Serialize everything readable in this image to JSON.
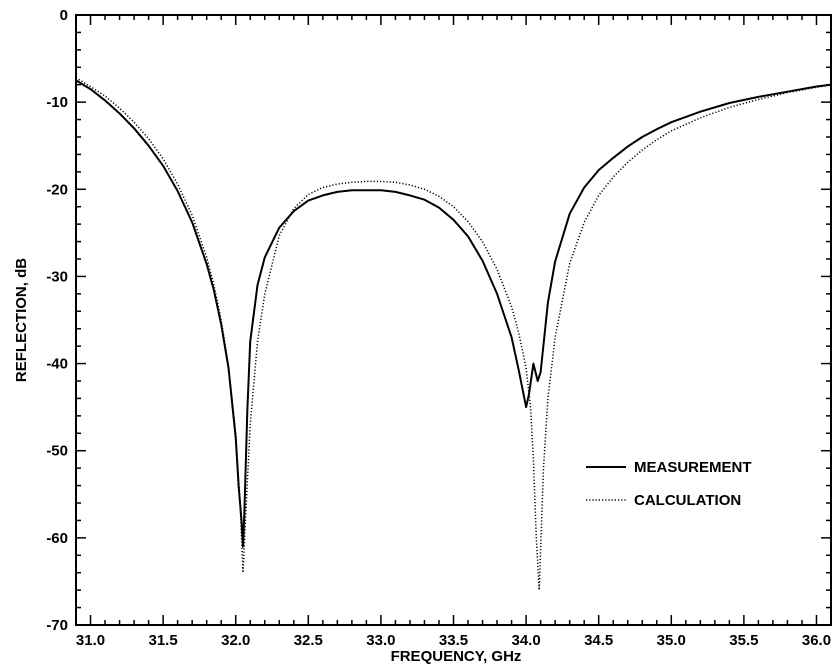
{
  "chart_data": {
    "type": "line",
    "title": "",
    "xlabel": "FREQUENCY, GHz",
    "ylabel": "REFLECTION, dB",
    "xlim": [
      30.9,
      36.1
    ],
    "ylim": [
      -70,
      0
    ],
    "xticks": [
      31.0,
      31.5,
      32.0,
      32.5,
      33.0,
      33.5,
      34.0,
      34.5,
      35.0,
      35.5,
      36.0
    ],
    "xtick_labels": [
      "31.0",
      "31.5",
      "32.0",
      "32.5",
      "33.0",
      "33.5",
      "34.0",
      "34.5",
      "35.0",
      "35.5",
      "36.0"
    ],
    "yticks": [
      0,
      -10,
      -20,
      -30,
      -40,
      -50,
      -60,
      -70
    ],
    "ytick_labels": [
      "0",
      "-10",
      "-20",
      "-30",
      "-40",
      "-50",
      "-60",
      "-70"
    ],
    "grid": false,
    "legend_position": "lower-right",
    "series": [
      {
        "name": "MEASUREMENT",
        "style": "solid",
        "color": "#000000",
        "x": [
          30.9,
          31.0,
          31.1,
          31.2,
          31.3,
          31.4,
          31.5,
          31.6,
          31.7,
          31.8,
          31.85,
          31.9,
          31.95,
          32.0,
          32.02,
          32.04,
          32.05,
          32.06,
          32.08,
          32.1,
          32.15,
          32.2,
          32.3,
          32.4,
          32.5,
          32.6,
          32.7,
          32.8,
          32.9,
          33.0,
          33.1,
          33.2,
          33.3,
          33.4,
          33.5,
          33.6,
          33.7,
          33.8,
          33.9,
          33.95,
          34.0,
          34.02,
          34.05,
          34.08,
          34.1,
          34.15,
          34.2,
          34.3,
          34.4,
          34.5,
          34.6,
          34.7,
          34.8,
          34.9,
          35.0,
          35.2,
          35.4,
          35.6,
          35.8,
          36.0,
          36.1
        ],
        "y": [
          -7.5,
          -8.5,
          -9.8,
          -11.3,
          -13,
          -15,
          -17.3,
          -20.2,
          -23.8,
          -28.6,
          -31.6,
          -35.5,
          -40.5,
          -48.5,
          -54,
          -58,
          -61,
          -57,
          -45.5,
          -37.5,
          -31,
          -27.8,
          -24.4,
          -22.5,
          -21.3,
          -20.7,
          -20.3,
          -20.1,
          -20.1,
          -20.1,
          -20.3,
          -20.7,
          -21.2,
          -22.1,
          -23.5,
          -25.4,
          -28.2,
          -32,
          -37,
          -40.8,
          -45,
          -43.5,
          -40,
          -42,
          -41,
          -33,
          -28.3,
          -22.8,
          -19.8,
          -17.8,
          -16.4,
          -15.1,
          -14,
          -13.1,
          -12.3,
          -11.1,
          -10.1,
          -9.4,
          -8.8,
          -8.2,
          -8.0
        ]
      },
      {
        "name": "CALCULATION",
        "style": "dotted",
        "color": "#000000",
        "x": [
          30.9,
          31.0,
          31.1,
          31.2,
          31.3,
          31.4,
          31.5,
          31.6,
          31.7,
          31.8,
          31.85,
          31.9,
          31.95,
          32.0,
          32.03,
          32.05,
          32.07,
          32.1,
          32.15,
          32.2,
          32.3,
          32.4,
          32.5,
          32.6,
          32.7,
          32.8,
          32.9,
          33.0,
          33.1,
          33.2,
          33.3,
          33.4,
          33.5,
          33.6,
          33.7,
          33.8,
          33.9,
          33.95,
          34.0,
          34.03,
          34.05,
          34.07,
          34.09,
          34.12,
          34.15,
          34.2,
          34.3,
          34.4,
          34.5,
          34.6,
          34.7,
          34.8,
          34.9,
          35.0,
          35.2,
          35.4,
          35.6,
          35.8,
          36.0,
          36.1
        ],
        "y": [
          -7.2,
          -8.2,
          -9.3,
          -10.7,
          -12.3,
          -14.2,
          -16.5,
          -19.4,
          -23,
          -27.8,
          -31,
          -35,
          -40.3,
          -48,
          -56,
          -64,
          -57,
          -47,
          -37.5,
          -32,
          -25.3,
          -22.2,
          -20.6,
          -19.8,
          -19.4,
          -19.2,
          -19.1,
          -19.1,
          -19.2,
          -19.5,
          -20,
          -20.8,
          -22,
          -23.7,
          -26,
          -29.2,
          -33.5,
          -36.5,
          -40.5,
          -45,
          -51,
          -60,
          -66,
          -52,
          -44,
          -37,
          -28.5,
          -23.8,
          -20.7,
          -18.6,
          -16.9,
          -15.5,
          -14.3,
          -13.3,
          -11.8,
          -10.6,
          -9.7,
          -8.9,
          -8.3,
          -8.0
        ]
      }
    ]
  }
}
